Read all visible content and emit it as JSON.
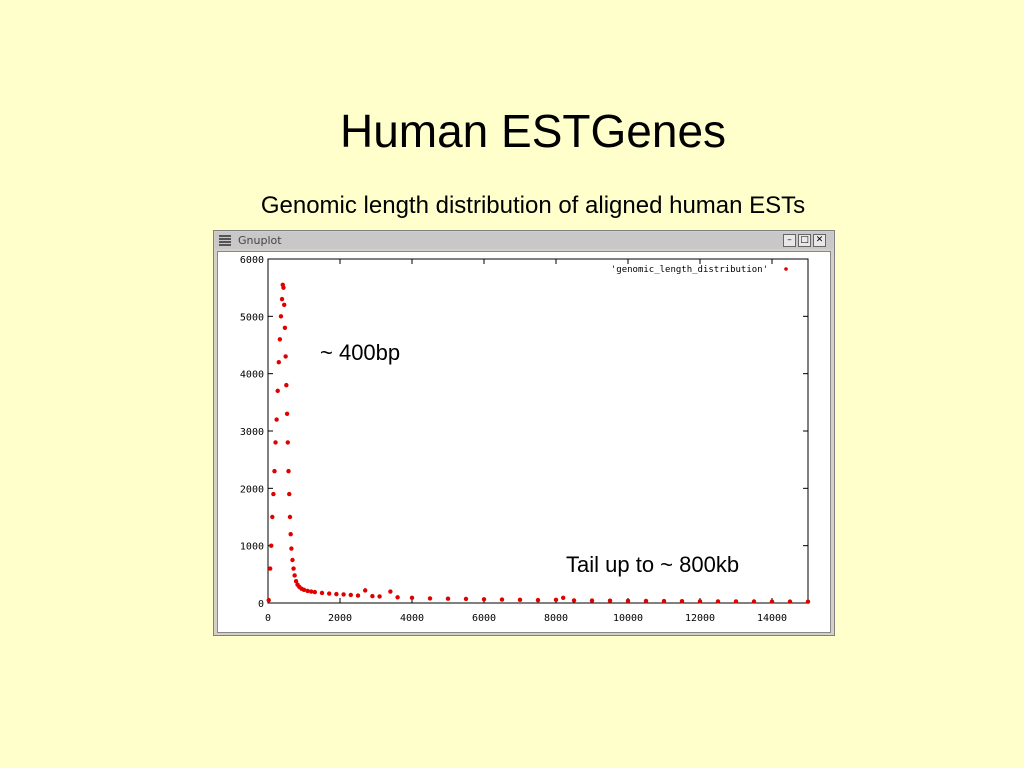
{
  "slide": {
    "title": "Human ESTGenes",
    "subtitle": "Genomic length distribution of aligned human ESTs"
  },
  "window": {
    "title": "Gnuplot",
    "buttons": {
      "minimize": "–",
      "maximize": "□",
      "close": "✕"
    }
  },
  "annotations": {
    "peak": "~ 400bp",
    "tail": "Tail up to ~ 800kb"
  },
  "colors": {
    "background": "#ffffcc",
    "series": "#e00000"
  },
  "chart_data": {
    "type": "scatter",
    "title": "",
    "xlabel": "",
    "ylabel": "",
    "xlim": [
      0,
      15000
    ],
    "ylim": [
      0,
      6000
    ],
    "x_ticks": [
      0,
      2000,
      4000,
      6000,
      8000,
      10000,
      12000,
      14000
    ],
    "y_ticks": [
      0,
      1000,
      2000,
      3000,
      4000,
      5000,
      6000
    ],
    "grid": false,
    "legend_position": "top-right",
    "series": [
      {
        "name": "'genomic_length_distribution'",
        "color": "#e00000",
        "points": [
          [
            20,
            50
          ],
          [
            60,
            600
          ],
          [
            90,
            1000
          ],
          [
            120,
            1500
          ],
          [
            150,
            1900
          ],
          [
            180,
            2300
          ],
          [
            210,
            2800
          ],
          [
            240,
            3200
          ],
          [
            270,
            3700
          ],
          [
            300,
            4200
          ],
          [
            330,
            4600
          ],
          [
            360,
            5000
          ],
          [
            390,
            5300
          ],
          [
            410,
            5550
          ],
          [
            430,
            5500
          ],
          [
            450,
            5200
          ],
          [
            470,
            4800
          ],
          [
            490,
            4300
          ],
          [
            510,
            3800
          ],
          [
            530,
            3300
          ],
          [
            550,
            2800
          ],
          [
            570,
            2300
          ],
          [
            590,
            1900
          ],
          [
            610,
            1500
          ],
          [
            630,
            1200
          ],
          [
            650,
            950
          ],
          [
            680,
            750
          ],
          [
            710,
            600
          ],
          [
            740,
            480
          ],
          [
            780,
            380
          ],
          [
            820,
            320
          ],
          [
            870,
            280
          ],
          [
            930,
            250
          ],
          [
            1000,
            230
          ],
          [
            1100,
            210
          ],
          [
            1200,
            200
          ],
          [
            1300,
            190
          ],
          [
            1500,
            175
          ],
          [
            1700,
            165
          ],
          [
            1900,
            155
          ],
          [
            2100,
            150
          ],
          [
            2300,
            140
          ],
          [
            2500,
            130
          ],
          [
            2700,
            220
          ],
          [
            2900,
            120
          ],
          [
            3100,
            115
          ],
          [
            3400,
            200
          ],
          [
            3600,
            100
          ],
          [
            4000,
            90
          ],
          [
            4500,
            80
          ],
          [
            5000,
            75
          ],
          [
            5500,
            70
          ],
          [
            6000,
            65
          ],
          [
            6500,
            60
          ],
          [
            7000,
            55
          ],
          [
            7500,
            50
          ],
          [
            8000,
            55
          ],
          [
            8200,
            90
          ],
          [
            8500,
            45
          ],
          [
            9000,
            42
          ],
          [
            9500,
            40
          ],
          [
            10000,
            38
          ],
          [
            10500,
            36
          ],
          [
            11000,
            34
          ],
          [
            11500,
            32
          ],
          [
            12000,
            30
          ],
          [
            12500,
            28
          ],
          [
            13000,
            27
          ],
          [
            13500,
            26
          ],
          [
            14000,
            25
          ],
          [
            14500,
            24
          ],
          [
            15000,
            23
          ]
        ]
      }
    ]
  }
}
